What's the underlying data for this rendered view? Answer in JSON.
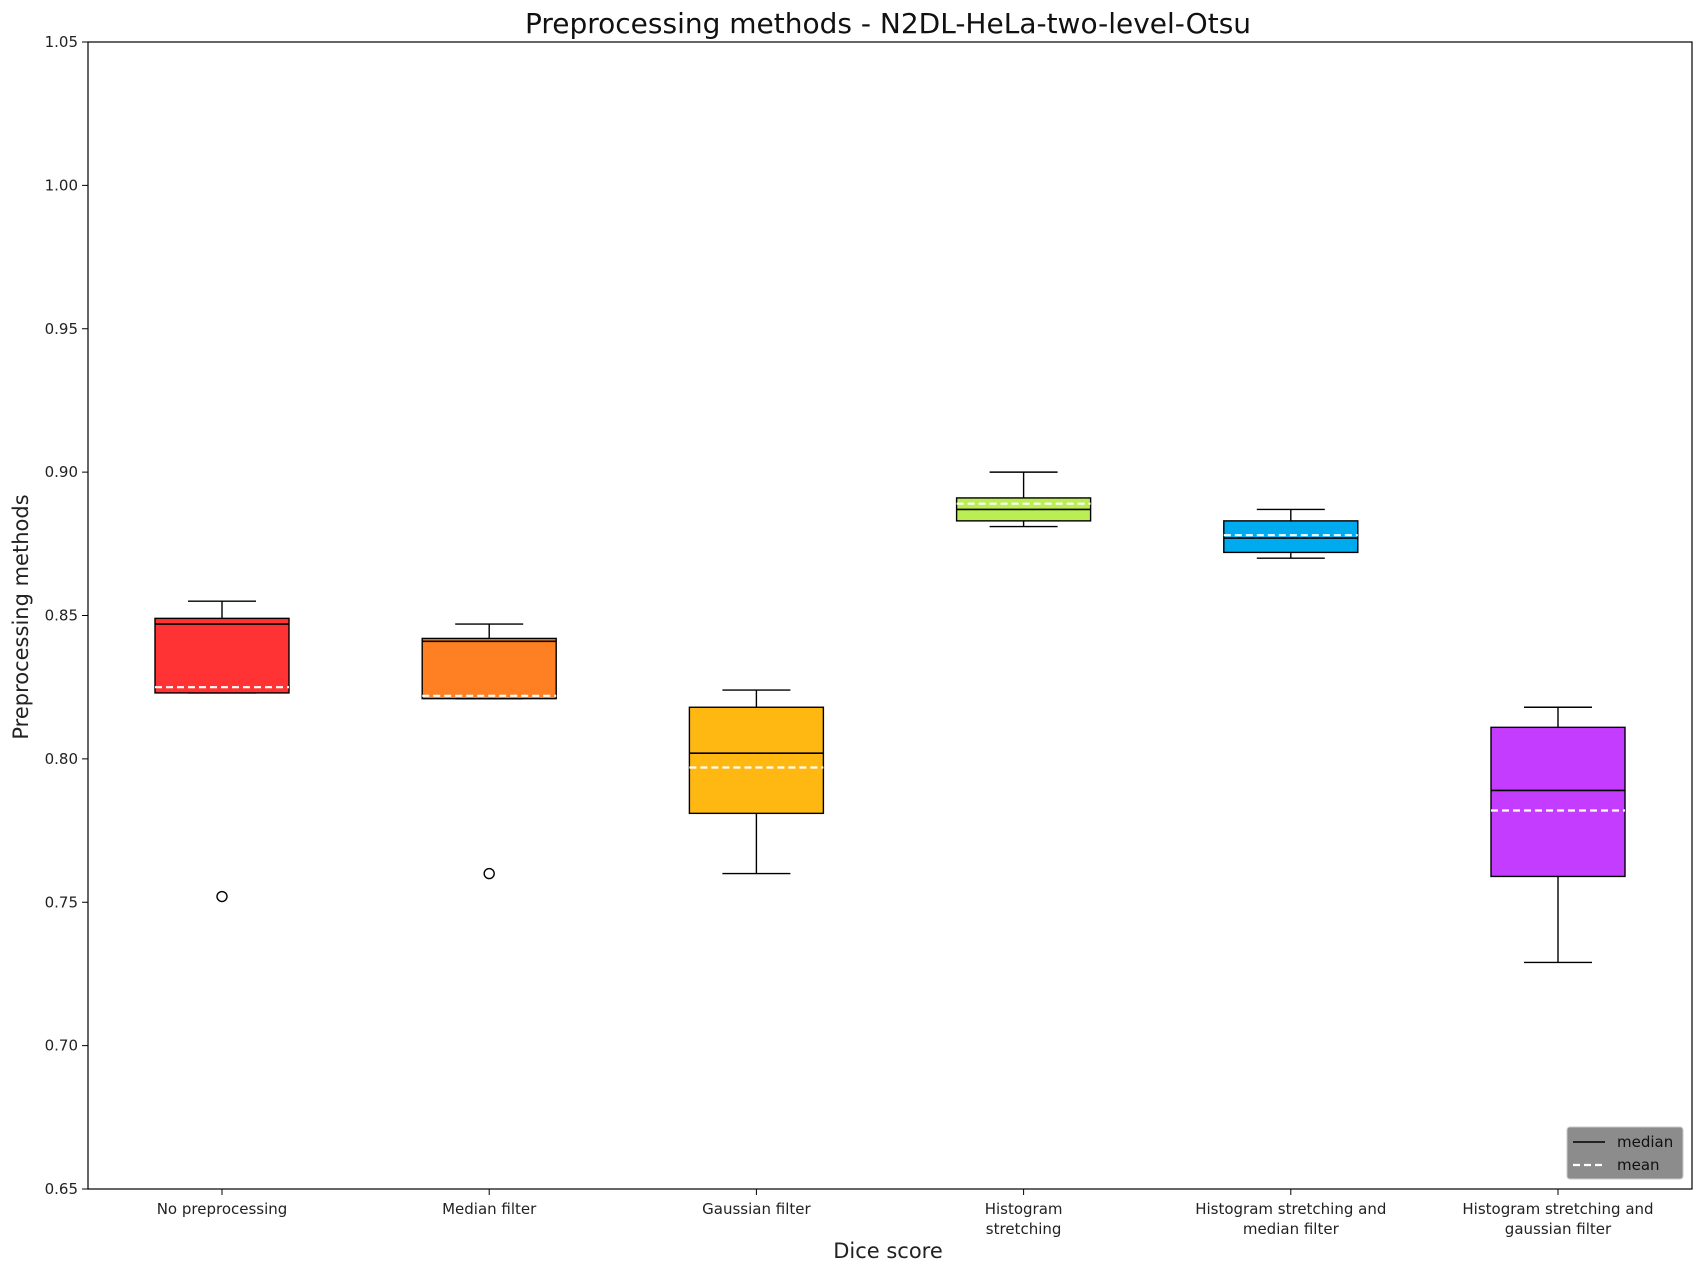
{
  "chart_data": {
    "type": "box",
    "title": "Preprocessing methods - N2DL-HeLa-two-level-Otsu",
    "xlabel": "Dice score",
    "ylabel": "Preprocessing methods",
    "ylim": [
      0.65,
      1.05
    ],
    "yticks": [
      "0.65",
      "0.70",
      "0.75",
      "0.80",
      "0.85",
      "0.90",
      "0.95",
      "1.00",
      "1.05"
    ],
    "grid": false,
    "legend_position": "bottom-right",
    "legend": [
      {
        "label": "median",
        "style": "solid",
        "color": "#000000"
      },
      {
        "label": "mean",
        "style": "dashed",
        "color": "#ffffff"
      }
    ],
    "categories": [
      [
        "No preprocessing"
      ],
      [
        "Median filter"
      ],
      [
        "Gaussian filter"
      ],
      [
        "Histogram",
        "stretching"
      ],
      [
        "Histogram stretching and",
        "median filter"
      ],
      [
        "Histogram stretching and",
        "gaussian filter"
      ]
    ],
    "boxes": [
      {
        "color": "#ff3333",
        "whisker_low": 0.823,
        "q1": 0.823,
        "median": 0.847,
        "q3": 0.849,
        "whisker_high": 0.855,
        "mean": 0.825,
        "outliers": [
          0.752
        ]
      },
      {
        "color": "#ff8022",
        "whisker_low": 0.821,
        "q1": 0.821,
        "median": 0.841,
        "q3": 0.842,
        "whisker_high": 0.847,
        "mean": 0.822,
        "outliers": [
          0.76
        ]
      },
      {
        "color": "#ffb811",
        "whisker_low": 0.76,
        "q1": 0.781,
        "median": 0.802,
        "q3": 0.818,
        "whisker_high": 0.824,
        "mean": 0.797,
        "outliers": []
      },
      {
        "color": "#bbee55",
        "whisker_low": 0.881,
        "q1": 0.883,
        "median": 0.887,
        "q3": 0.891,
        "whisker_high": 0.9,
        "mean": 0.889,
        "outliers": []
      },
      {
        "color": "#00aaee",
        "whisker_low": 0.87,
        "q1": 0.872,
        "median": 0.877,
        "q3": 0.883,
        "whisker_high": 0.887,
        "mean": 0.878,
        "outliers": []
      },
      {
        "color": "#c43cff",
        "whisker_low": 0.729,
        "q1": 0.759,
        "median": 0.789,
        "q3": 0.811,
        "whisker_high": 0.818,
        "mean": 0.782,
        "outliers": []
      }
    ]
  }
}
